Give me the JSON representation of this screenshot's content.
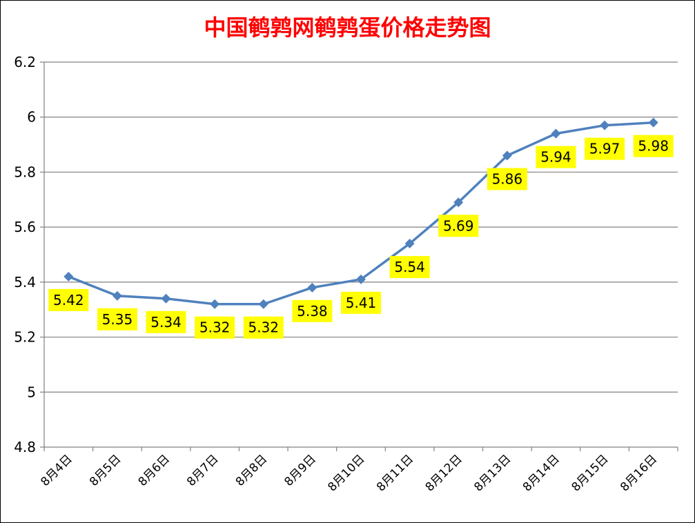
{
  "chart_data": {
    "type": "line",
    "title": "中国鹌鹑网鹌鹑蛋价格走势图",
    "categories": [
      "8月4日",
      "8月5日",
      "8月6日",
      "8月7日",
      "8月8日",
      "8月9日",
      "8月10日",
      "8月11日",
      "8月12日",
      "8月13日",
      "8月14日",
      "8月15日",
      "8月16日"
    ],
    "series": [
      {
        "values": [
          5.42,
          5.35,
          5.34,
          5.32,
          5.32,
          5.38,
          5.41,
          5.54,
          5.69,
          5.86,
          5.94,
          5.97,
          5.98
        ],
        "labels": [
          "5.42",
          "5.35",
          "5.34",
          "5.32",
          "5.32",
          "5.38",
          "5.41",
          "5.54",
          "5.69",
          "5.86",
          "5.94",
          "5.97",
          "5.98"
        ],
        "color": "#4f81bd"
      }
    ],
    "ylim": [
      4.8,
      6.2
    ],
    "yticks": [
      4.8,
      5,
      5.2,
      5.4,
      5.6,
      5.8,
      6,
      6.2
    ],
    "ytick_labels": [
      "4.8",
      "5",
      "5.2",
      "5.4",
      "5.6",
      "5.8",
      "6",
      "6.2"
    ],
    "grid": true,
    "label_background": "#ffff00",
    "title_color": "#ff0000"
  }
}
